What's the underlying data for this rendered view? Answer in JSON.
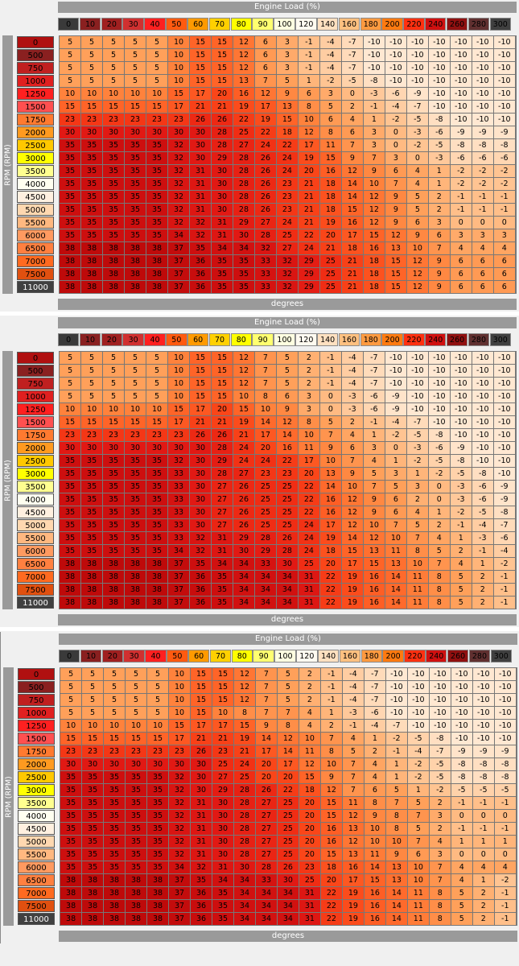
{
  "labels": {
    "x_axis": "Engine Load (%)",
    "y_axis": "RPM (RPM)",
    "units": "degrees"
  },
  "load_columns": [
    0,
    10,
    20,
    30,
    40,
    50,
    60,
    70,
    80,
    90,
    100,
    120,
    140,
    160,
    180,
    200,
    220,
    240,
    260,
    280,
    300
  ],
  "load_colors": [
    "#3a3a3a",
    "#8a2020",
    "#a02020",
    "#d03030",
    "#ff2020",
    "#ff5a10",
    "#ff9a00",
    "#ffd000",
    "#ffff00",
    "#ffff70",
    "#ffffe0",
    "#fffaf0",
    "#ffe0c0",
    "#ffc080",
    "#ff9a40",
    "#ff7a10",
    "#ff3010",
    "#d01010",
    "#901010",
    "#603030",
    "#404040"
  ],
  "rpm_rows": [
    0,
    500,
    750,
    1000,
    1250,
    1500,
    1750,
    2000,
    2500,
    3000,
    3500,
    4000,
    4500,
    5000,
    5500,
    6000,
    6500,
    7000,
    7500,
    11000
  ],
  "rpm_colors": [
    "#b01010",
    "#8a2020",
    "#c02020",
    "#e02020",
    "#ff2020",
    "#ff5050",
    "#ff7a30",
    "#ff9a20",
    "#ffc800",
    "#ffff00",
    "#ffff90",
    "#fffff0",
    "#fff0e0",
    "#ffd8b0",
    "#ffb880",
    "#ff9a60",
    "#ff8040",
    "#ff6a20",
    "#e05010",
    "#404040"
  ],
  "tables": [
    [
      [
        5,
        5,
        5,
        5,
        5,
        10,
        15,
        15,
        12,
        6,
        3,
        -1,
        -4,
        -7,
        -10,
        -10,
        -10,
        -10,
        -10,
        -10,
        -10
      ],
      [
        5,
        5,
        5,
        5,
        5,
        10,
        15,
        15,
        12,
        6,
        3,
        -1,
        -4,
        -7,
        -10,
        -10,
        -10,
        -10,
        -10,
        -10,
        -10
      ],
      [
        5,
        5,
        5,
        5,
        5,
        10,
        15,
        15,
        12,
        6,
        3,
        -1,
        -4,
        -7,
        -10,
        -10,
        -10,
        -10,
        -10,
        -10,
        -10
      ],
      [
        5,
        5,
        5,
        5,
        5,
        10,
        15,
        15,
        13,
        7,
        5,
        1,
        -2,
        -5,
        -8,
        -10,
        -10,
        -10,
        -10,
        -10,
        -10
      ],
      [
        10,
        10,
        10,
        10,
        10,
        15,
        17,
        20,
        16,
        12,
        9,
        6,
        3,
        0,
        -3,
        -6,
        -9,
        -10,
        -10,
        -10,
        -10
      ],
      [
        15,
        15,
        15,
        15,
        15,
        17,
        21,
        21,
        19,
        17,
        13,
        8,
        5,
        2,
        -1,
        -4,
        -7,
        -10,
        -10,
        -10,
        -10
      ],
      [
        23,
        23,
        23,
        23,
        23,
        23,
        26,
        26,
        22,
        19,
        15,
        10,
        6,
        4,
        1,
        -2,
        -5,
        -8,
        -10,
        -10,
        -10
      ],
      [
        30,
        30,
        30,
        30,
        30,
        30,
        30,
        28,
        25,
        22,
        18,
        12,
        8,
        6,
        3,
        0,
        -3,
        -6,
        -9,
        -9,
        -9
      ],
      [
        35,
        35,
        35,
        35,
        35,
        32,
        30,
        28,
        27,
        24,
        22,
        17,
        11,
        7,
        3,
        0,
        -2,
        -5,
        -8,
        -8,
        -8
      ],
      [
        35,
        35,
        35,
        35,
        35,
        32,
        30,
        29,
        28,
        26,
        24,
        19,
        15,
        9,
        7,
        3,
        0,
        -3,
        -6,
        -6,
        -6
      ],
      [
        35,
        35,
        35,
        35,
        35,
        32,
        31,
        30,
        28,
        26,
        24,
        20,
        16,
        12,
        9,
        6,
        4,
        1,
        -2,
        -2,
        -2
      ],
      [
        35,
        35,
        35,
        35,
        35,
        32,
        31,
        30,
        28,
        26,
        23,
        21,
        18,
        14,
        10,
        7,
        4,
        1,
        -2,
        -2,
        -2
      ],
      [
        35,
        35,
        35,
        35,
        35,
        32,
        31,
        30,
        28,
        26,
        23,
        21,
        18,
        14,
        12,
        9,
        5,
        2,
        -1,
        -1,
        -1
      ],
      [
        35,
        35,
        35,
        35,
        35,
        32,
        31,
        30,
        28,
        26,
        23,
        21,
        18,
        15,
        12,
        9,
        5,
        2,
        -1,
        -1,
        -1
      ],
      [
        35,
        35,
        35,
        35,
        35,
        32,
        32,
        31,
        29,
        27,
        24,
        21,
        19,
        16,
        12,
        9,
        6,
        3,
        0,
        0,
        0
      ],
      [
        35,
        35,
        35,
        35,
        35,
        34,
        32,
        31,
        30,
        28,
        25,
        22,
        20,
        17,
        15,
        12,
        9,
        6,
        3,
        3,
        3
      ],
      [
        38,
        38,
        38,
        38,
        38,
        37,
        35,
        34,
        34,
        32,
        27,
        24,
        21,
        18,
        16,
        13,
        10,
        7,
        4,
        4,
        4
      ],
      [
        38,
        38,
        38,
        38,
        38,
        37,
        36,
        35,
        35,
        33,
        32,
        29,
        25,
        21,
        18,
        15,
        12,
        9,
        6,
        6,
        6
      ],
      [
        38,
        38,
        38,
        38,
        38,
        37,
        36,
        35,
        35,
        33,
        32,
        29,
        25,
        21,
        18,
        15,
        12,
        9,
        6,
        6,
        6
      ],
      [
        38,
        38,
        38,
        38,
        38,
        37,
        36,
        35,
        35,
        33,
        32,
        29,
        25,
        21,
        18,
        15,
        12,
        9,
        6,
        6,
        6
      ]
    ],
    [
      [
        5,
        5,
        5,
        5,
        5,
        10,
        15,
        15,
        12,
        7,
        5,
        2,
        -1,
        -4,
        -7,
        -10,
        -10,
        -10,
        -10,
        -10,
        -10
      ],
      [
        5,
        5,
        5,
        5,
        5,
        10,
        15,
        15,
        12,
        7,
        5,
        2,
        -1,
        -4,
        -7,
        -10,
        -10,
        -10,
        -10,
        -10,
        -10
      ],
      [
        5,
        5,
        5,
        5,
        5,
        10,
        15,
        15,
        12,
        7,
        5,
        2,
        -1,
        -4,
        -7,
        -10,
        -10,
        -10,
        -10,
        -10,
        -10
      ],
      [
        5,
        5,
        5,
        5,
        5,
        10,
        15,
        15,
        10,
        8,
        6,
        3,
        0,
        -3,
        -6,
        -9,
        -10,
        -10,
        -10,
        -10,
        -10
      ],
      [
        10,
        10,
        10,
        10,
        10,
        15,
        17,
        20,
        15,
        10,
        9,
        3,
        0,
        -3,
        -6,
        -9,
        -10,
        -10,
        -10,
        -10,
        -10
      ],
      [
        15,
        15,
        15,
        15,
        15,
        17,
        21,
        21,
        19,
        14,
        12,
        8,
        5,
        2,
        -1,
        -4,
        -7,
        -10,
        -10,
        -10,
        -10
      ],
      [
        23,
        23,
        23,
        23,
        23,
        23,
        26,
        26,
        21,
        17,
        14,
        10,
        7,
        4,
        1,
        -2,
        -5,
        -8,
        -10,
        -10,
        -10
      ],
      [
        30,
        30,
        30,
        30,
        30,
        30,
        30,
        28,
        24,
        20,
        16,
        11,
        9,
        6,
        3,
        0,
        -3,
        -6,
        -9,
        -10,
        -10
      ],
      [
        35,
        35,
        35,
        35,
        35,
        32,
        30,
        29,
        24,
        24,
        22,
        17,
        10,
        7,
        4,
        1,
        -2,
        -5,
        -8,
        -10,
        -10
      ],
      [
        35,
        35,
        35,
        35,
        35,
        33,
        30,
        28,
        27,
        23,
        23,
        20,
        13,
        9,
        5,
        3,
        1,
        -2,
        -5,
        -8,
        -10
      ],
      [
        35,
        35,
        35,
        35,
        35,
        33,
        30,
        27,
        26,
        25,
        25,
        22,
        14,
        10,
        7,
        5,
        3,
        0,
        -3,
        -6,
        -9
      ],
      [
        35,
        35,
        35,
        35,
        35,
        33,
        30,
        27,
        26,
        25,
        25,
        22,
        16,
        12,
        9,
        6,
        2,
        0,
        -3,
        -6,
        -9
      ],
      [
        35,
        35,
        35,
        35,
        35,
        33,
        30,
        27,
        26,
        25,
        25,
        22,
        16,
        12,
        9,
        6,
        4,
        1,
        -2,
        -5,
        -8
      ],
      [
        35,
        35,
        35,
        35,
        35,
        33,
        30,
        27,
        26,
        25,
        25,
        24,
        17,
        12,
        10,
        7,
        5,
        2,
        -1,
        -4,
        -7
      ],
      [
        35,
        35,
        35,
        35,
        35,
        33,
        32,
        31,
        29,
        28,
        26,
        24,
        19,
        14,
        12,
        10,
        7,
        4,
        1,
        -3,
        -6
      ],
      [
        35,
        35,
        35,
        35,
        35,
        34,
        32,
        31,
        30,
        29,
        28,
        24,
        18,
        15,
        13,
        11,
        8,
        5,
        2,
        -1,
        -4
      ],
      [
        38,
        38,
        38,
        38,
        38,
        37,
        35,
        34,
        34,
        33,
        30,
        25,
        20,
        17,
        15,
        13,
        10,
        7,
        4,
        1,
        -2
      ],
      [
        38,
        38,
        38,
        38,
        38,
        37,
        36,
        35,
        34,
        34,
        34,
        31,
        22,
        19,
        16,
        14,
        11,
        8,
        5,
        2,
        -1
      ],
      [
        38,
        38,
        38,
        38,
        38,
        37,
        36,
        35,
        34,
        34,
        34,
        31,
        22,
        19,
        16,
        14,
        11,
        8,
        5,
        2,
        -1
      ],
      [
        38,
        38,
        38,
        38,
        38,
        37,
        36,
        35,
        34,
        34,
        34,
        31,
        22,
        19,
        16,
        14,
        11,
        8,
        5,
        2,
        -1
      ]
    ],
    [
      [
        5,
        5,
        5,
        5,
        5,
        10,
        15,
        15,
        12,
        7,
        5,
        2,
        -1,
        -4,
        -7,
        -10,
        -10,
        -10,
        -10,
        -10,
        -10
      ],
      [
        5,
        5,
        5,
        5,
        5,
        10,
        15,
        15,
        12,
        7,
        5,
        2,
        -1,
        -4,
        -7,
        -10,
        -10,
        -10,
        -10,
        -10,
        -10
      ],
      [
        5,
        5,
        5,
        5,
        5,
        10,
        15,
        15,
        12,
        7,
        5,
        2,
        -1,
        -4,
        -7,
        -10,
        -10,
        -10,
        -10,
        -10,
        -10
      ],
      [
        5,
        5,
        5,
        5,
        5,
        10,
        15,
        10,
        8,
        7,
        7,
        4,
        1,
        -3,
        -6,
        -10,
        -10,
        -10,
        -10,
        -10,
        -10
      ],
      [
        10,
        10,
        10,
        10,
        10,
        15,
        17,
        17,
        15,
        9,
        8,
        4,
        2,
        -1,
        -4,
        -7,
        -10,
        -10,
        -10,
        -10,
        -10
      ],
      [
        15,
        15,
        15,
        15,
        15,
        17,
        21,
        21,
        19,
        14,
        12,
        10,
        7,
        4,
        1,
        -2,
        -5,
        -8,
        -10,
        -10,
        -10
      ],
      [
        23,
        23,
        23,
        23,
        23,
        23,
        26,
        23,
        21,
        17,
        14,
        11,
        8,
        5,
        2,
        -1,
        -4,
        -7,
        -9,
        -9,
        -9
      ],
      [
        30,
        30,
        30,
        30,
        30,
        30,
        30,
        25,
        24,
        20,
        17,
        12,
        10,
        7,
        4,
        1,
        -2,
        -5,
        -8,
        -8,
        -8
      ],
      [
        35,
        35,
        35,
        35,
        35,
        32,
        30,
        27,
        25,
        20,
        20,
        15,
        9,
        7,
        4,
        1,
        -2,
        -5,
        -8,
        -8,
        -8
      ],
      [
        35,
        35,
        35,
        35,
        35,
        32,
        30,
        29,
        28,
        26,
        22,
        18,
        12,
        7,
        6,
        5,
        1,
        -2,
        -5,
        -5,
        -5
      ],
      [
        35,
        35,
        35,
        35,
        35,
        32,
        31,
        30,
        28,
        27,
        25,
        20,
        15,
        11,
        8,
        7,
        5,
        2,
        -1,
        -1,
        -1
      ],
      [
        35,
        35,
        35,
        35,
        35,
        32,
        31,
        30,
        28,
        27,
        25,
        20,
        15,
        12,
        9,
        8,
        7,
        3,
        0,
        0,
        0
      ],
      [
        35,
        35,
        35,
        35,
        35,
        32,
        31,
        30,
        28,
        27,
        25,
        20,
        16,
        13,
        10,
        8,
        5,
        2,
        -1,
        -1,
        -1
      ],
      [
        35,
        35,
        35,
        35,
        35,
        32,
        31,
        30,
        28,
        27,
        25,
        20,
        16,
        12,
        10,
        10,
        7,
        4,
        1,
        1,
        1
      ],
      [
        35,
        35,
        35,
        35,
        35,
        32,
        31,
        30,
        28,
        27,
        25,
        20,
        15,
        13,
        11,
        9,
        6,
        3,
        0,
        0,
        0
      ],
      [
        35,
        35,
        35,
        35,
        35,
        34,
        32,
        31,
        30,
        28,
        26,
        23,
        18,
        16,
        14,
        13,
        10,
        7,
        4,
        4,
        4
      ],
      [
        38,
        38,
        38,
        38,
        38,
        37,
        35,
        34,
        34,
        33,
        30,
        25,
        20,
        17,
        15,
        13,
        10,
        7,
        4,
        1,
        -2
      ],
      [
        38,
        38,
        38,
        38,
        38,
        37,
        36,
        35,
        34,
        34,
        34,
        31,
        22,
        19,
        16,
        14,
        11,
        8,
        5,
        2,
        -1
      ],
      [
        38,
        38,
        38,
        38,
        38,
        37,
        36,
        35,
        34,
        34,
        34,
        31,
        22,
        19,
        16,
        14,
        11,
        8,
        5,
        2,
        -1
      ],
      [
        38,
        38,
        38,
        38,
        38,
        37,
        36,
        35,
        34,
        34,
        34,
        31,
        22,
        19,
        16,
        14,
        11,
        8,
        5,
        2,
        -1
      ]
    ]
  ]
}
